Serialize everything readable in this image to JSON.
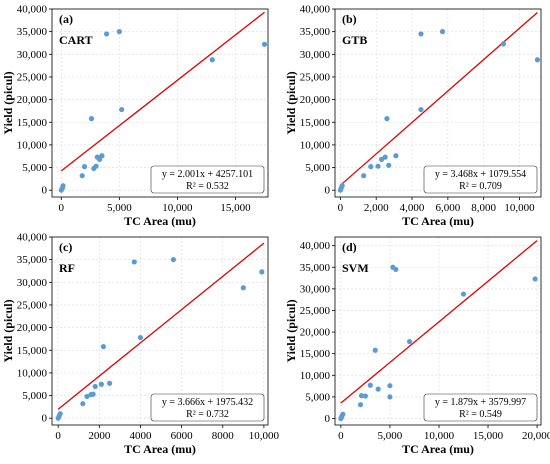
{
  "chart_data": [
    {
      "type": "scatter",
      "panel": "(a)",
      "model": "CART",
      "xlabel": "TC Area (mu)",
      "ylabel": "Yield (picul)",
      "xlim": [
        -800,
        17800
      ],
      "ylim": [
        -1500,
        40000
      ],
      "xticks": [
        0,
        5000,
        10000,
        15000
      ],
      "xtick_labels": [
        "0",
        "5,000",
        "10,000",
        "15,000"
      ],
      "yticks": [
        0,
        5000,
        10000,
        15000,
        20000,
        25000,
        30000,
        35000,
        40000
      ],
      "ytick_labels": [
        "0",
        "5,000",
        "10,000",
        "15,000",
        "20,000",
        "25,000",
        "30,000",
        "35,000",
        "40,000"
      ],
      "fit": {
        "slope": 2.001,
        "intercept": 4257.101,
        "x_range": [
          0,
          17500
        ]
      },
      "equation": "y = 2.001x + 4257.101",
      "r2": "R² = 0.532",
      "points": [
        [
          0,
          0
        ],
        [
          100,
          500
        ],
        [
          150,
          1000
        ],
        [
          1800,
          3200
        ],
        [
          2000,
          5200
        ],
        [
          2600,
          15800
        ],
        [
          2800,
          4800
        ],
        [
          3000,
          5300
        ],
        [
          3100,
          7300
        ],
        [
          3300,
          6800
        ],
        [
          3500,
          7600
        ],
        [
          3900,
          34500
        ],
        [
          5000,
          35000
        ],
        [
          5200,
          17800
        ],
        [
          13000,
          28800
        ],
        [
          17500,
          32200
        ]
      ]
    },
    {
      "type": "scatter",
      "panel": "(b)",
      "model": "GTB",
      "xlabel": "TC Area (mu)",
      "ylabel": "Yield (picul)",
      "xlim": [
        -300,
        11200
      ],
      "ylim": [
        -1500,
        40000
      ],
      "xticks": [
        0,
        2000,
        4000,
        6000,
        8000,
        10000
      ],
      "xtick_labels": [
        "0",
        "2,000",
        "4,000",
        "6,000",
        "8,000",
        "10,000"
      ],
      "yticks": [
        0,
        5000,
        10000,
        15000,
        20000,
        25000,
        30000,
        35000,
        40000
      ],
      "ytick_labels": [
        "0",
        "5,000",
        "10,000",
        "15,000",
        "20,000",
        "25,000",
        "30,000",
        "35,000",
        "40,000"
      ],
      "fit": {
        "slope": 3.468,
        "intercept": 1079.554,
        "x_range": [
          0,
          11000
        ]
      },
      "equation": "y = 3.468x + 1079.554",
      "r2": "R² = 0.709",
      "points": [
        [
          0,
          0
        ],
        [
          50,
          500
        ],
        [
          100,
          1000
        ],
        [
          1300,
          3200
        ],
        [
          1700,
          5200
        ],
        [
          2100,
          5300
        ],
        [
          2300,
          6800
        ],
        [
          2500,
          7300
        ],
        [
          2600,
          15800
        ],
        [
          2700,
          5500
        ],
        [
          3100,
          7600
        ],
        [
          4500,
          34500
        ],
        [
          4500,
          17800
        ],
        [
          5700,
          35000
        ],
        [
          9100,
          32300
        ],
        [
          11000,
          28800
        ]
      ]
    },
    {
      "type": "scatter",
      "panel": "(c)",
      "model": "RF",
      "xlabel": "TC Area (mu)",
      "ylabel": "Yield (picul)",
      "xlim": [
        -300,
        10200
      ],
      "ylim": [
        -1500,
        40000
      ],
      "xticks": [
        0,
        2000,
        4000,
        6000,
        8000,
        10000
      ],
      "xtick_labels": [
        "0",
        "2000",
        "4000",
        "6000",
        "8000",
        "10,000"
      ],
      "yticks": [
        0,
        5000,
        10000,
        15000,
        20000,
        25000,
        30000,
        35000,
        40000
      ],
      "ytick_labels": [
        "0",
        "5,000",
        "10,000",
        "15,000",
        "20,000",
        "25,000",
        "30,000",
        "35,000",
        "40,000"
      ],
      "fit": {
        "slope": 3.666,
        "intercept": 1975.432,
        "x_range": [
          0,
          10000
        ]
      },
      "equation": "y = 3.666x + 1975.432",
      "r2": "R² = 0.732",
      "points": [
        [
          0,
          0
        ],
        [
          50,
          500
        ],
        [
          100,
          1000
        ],
        [
          1200,
          3200
        ],
        [
          1400,
          4800
        ],
        [
          1600,
          5200
        ],
        [
          1700,
          5300
        ],
        [
          1800,
          7000
        ],
        [
          2100,
          7500
        ],
        [
          2200,
          15800
        ],
        [
          2500,
          7700
        ],
        [
          3700,
          34500
        ],
        [
          4000,
          17800
        ],
        [
          5600,
          35000
        ],
        [
          9000,
          28800
        ],
        [
          9900,
          32300
        ]
      ]
    },
    {
      "type": "scatter",
      "panel": "(d)",
      "model": "SVM",
      "xlabel": "TC Area (mu)",
      "ylabel": "Yield (picul)",
      "xlim": [
        -600,
        20400
      ],
      "ylim": [
        -1500,
        42000
      ],
      "xticks": [
        0,
        5000,
        10000,
        15000,
        20000
      ],
      "xtick_labels": [
        "0",
        "5,000",
        "10,000",
        "15,000",
        "20,000"
      ],
      "yticks": [
        0,
        5000,
        10000,
        15000,
        20000,
        25000,
        30000,
        35000,
        40000
      ],
      "ytick_labels": [
        "0",
        "5,000",
        "10,000",
        "15,000",
        "20,000",
        "25,000",
        "30,000",
        "35,000",
        "40,000"
      ],
      "fit": {
        "slope": 1.879,
        "intercept": 3579.997,
        "x_range": [
          0,
          20000
        ]
      },
      "equation": "y = 1.879x + 3579.997",
      "r2": "R² = 0.549",
      "points": [
        [
          0,
          0
        ],
        [
          100,
          500
        ],
        [
          200,
          1000
        ],
        [
          2000,
          3200
        ],
        [
          2100,
          5300
        ],
        [
          2500,
          5200
        ],
        [
          3000,
          7700
        ],
        [
          3500,
          15800
        ],
        [
          3800,
          6800
        ],
        [
          5000,
          5000
        ],
        [
          5000,
          7600
        ],
        [
          5300,
          35000
        ],
        [
          5600,
          34500
        ],
        [
          7000,
          17800
        ],
        [
          12500,
          28800
        ],
        [
          19800,
          32300
        ]
      ]
    }
  ]
}
